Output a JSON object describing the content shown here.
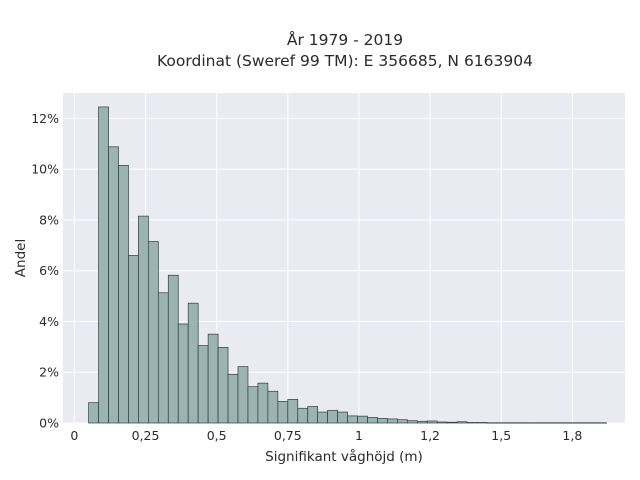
{
  "chart_data": {
    "type": "bar",
    "title": [
      "År 1979 - 2019",
      "Koordinat (Sweref 99 TM): E 356685, N 6163904"
    ],
    "xlabel": "Signifikant våghöjd (m)",
    "ylabel": "Andel",
    "xlim": [
      -0.04,
      1.935
    ],
    "ylim": [
      0,
      0.13
    ],
    "bin_width": 0.035,
    "bin_start": 0.05,
    "values": [
      0.008,
      0.1245,
      0.1088,
      0.1015,
      0.066,
      0.0815,
      0.0715,
      0.0513,
      0.0582,
      0.039,
      0.0472,
      0.0305,
      0.035,
      0.0298,
      0.0192,
      0.0222,
      0.0143,
      0.0157,
      0.0125,
      0.0085,
      0.0093,
      0.0058,
      0.0065,
      0.0043,
      0.005,
      0.0043,
      0.0028,
      0.0027,
      0.0022,
      0.0018,
      0.0016,
      0.0013,
      0.0009,
      0.0007,
      0.0008,
      0.0004,
      0.0003,
      0.0005,
      0.0002,
      0.0002,
      0.0001,
      0.0001,
      0.0001,
      0.0001,
      0.0001,
      0.0001,
      0.0001,
      0.0001,
      0.0001,
      0.0001,
      0.0001,
      0.0001
    ],
    "x_ticks": [
      0,
      0.25,
      0.5,
      0.75,
      1,
      1.25,
      1.5,
      1.75
    ],
    "x_tick_labels": [
      "0",
      "0,25",
      "0,5",
      "0,75",
      "1",
      "1,2",
      "1,5",
      "1,8"
    ],
    "y_ticks": [
      0,
      0.02,
      0.04,
      0.06,
      0.08,
      0.1,
      0.12
    ],
    "y_tick_labels": [
      "0%",
      "2%",
      "4%",
      "6%",
      "8%",
      "10%",
      "12%"
    ],
    "grid": true,
    "colors": {
      "bar_fill": "#9bb3b3",
      "bar_edge": "#2f3d3d",
      "plot_bg": "#eaeaf2",
      "grid": "#ffffff"
    }
  }
}
